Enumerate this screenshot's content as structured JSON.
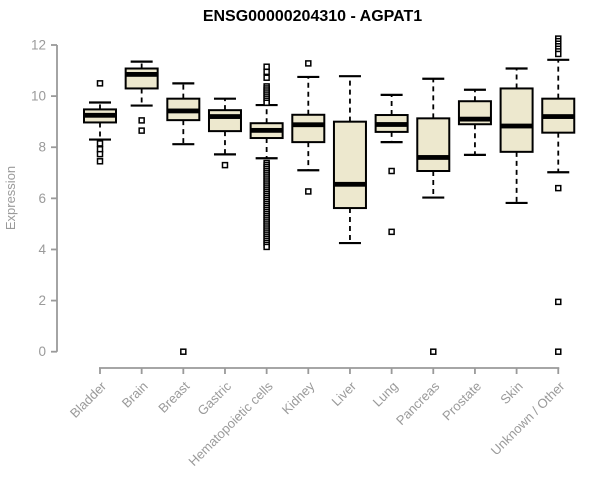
{
  "title": "ENSG00000204310 - AGPAT1",
  "colors": {
    "box_fill": "#ede8ce",
    "box_stroke": "#000000",
    "median": "#000000",
    "axis_line": "#9a9a9a",
    "axis_text": "#9a9a9a",
    "title_text": "#000000",
    "outlier_fill": "#ffffff"
  },
  "chart_data": {
    "type": "boxplot",
    "title": "ENSG00000204310 - AGPAT1",
    "ylabel": "Expression",
    "xlabel": "",
    "ylim": [
      0,
      12
    ],
    "yticks": [
      0,
      2,
      4,
      6,
      8,
      10,
      12
    ],
    "grid": false,
    "whisker_style": "dashed",
    "categories": [
      "Bladder",
      "Brain",
      "Breast",
      "Gastric",
      "Hematopoietic cells",
      "Kidney",
      "Liver",
      "Lung",
      "Pancreas",
      "Prostate",
      "Skin",
      "Unknown / Other"
    ],
    "series": [
      {
        "name": "Bladder",
        "whisker_low": 8.3,
        "q1": 8.97,
        "median": 9.25,
        "q3": 9.48,
        "whisker_high": 9.75,
        "outliers": [
          10.5,
          8.15,
          7.92,
          7.73,
          7.45
        ]
      },
      {
        "name": "Brain",
        "whisker_low": 9.63,
        "q1": 10.3,
        "median": 10.85,
        "q3": 11.08,
        "whisker_high": 11.35,
        "outliers": [
          9.05,
          8.65
        ]
      },
      {
        "name": "Breast",
        "whisker_low": 8.12,
        "q1": 9.06,
        "median": 9.42,
        "q3": 9.9,
        "whisker_high": 10.5,
        "outliers": [
          0.0
        ]
      },
      {
        "name": "Gastric",
        "whisker_low": 7.72,
        "q1": 8.63,
        "median": 9.2,
        "q3": 9.45,
        "whisker_high": 9.9,
        "outliers": [
          7.3
        ]
      },
      {
        "name": "Hematopoietic cells",
        "whisker_low": 7.57,
        "q1": 8.36,
        "median": 8.66,
        "q3": 8.94,
        "whisker_high": 9.65,
        "outliers": [
          11.15,
          10.95,
          10.72,
          10.38,
          10.3,
          10.22,
          10.14,
          10.06,
          9.98,
          9.9,
          9.82,
          9.74,
          7.38,
          7.3,
          7.22,
          7.14,
          7.06,
          6.98,
          6.9,
          6.82,
          6.74,
          6.66,
          6.58,
          6.5,
          6.42,
          6.34,
          6.26,
          6.18,
          6.1,
          6.02,
          5.94,
          5.86,
          5.78,
          5.7,
          5.62,
          5.54,
          5.46,
          5.38,
          5.3,
          5.22,
          5.14,
          5.06,
          4.98,
          4.9,
          4.82,
          4.74,
          4.66,
          4.58,
          4.5,
          4.42,
          4.34,
          4.26,
          4.18,
          4.1
        ]
      },
      {
        "name": "Kidney",
        "whisker_low": 7.1,
        "q1": 8.2,
        "median": 8.88,
        "q3": 9.27,
        "whisker_high": 10.75,
        "outliers": [
          11.28,
          6.27
        ]
      },
      {
        "name": "Liver",
        "whisker_low": 4.25,
        "q1": 5.62,
        "median": 6.55,
        "q3": 9.0,
        "whisker_high": 10.78,
        "outliers": []
      },
      {
        "name": "Lung",
        "whisker_low": 8.2,
        "q1": 8.6,
        "median": 8.89,
        "q3": 9.26,
        "whisker_high": 10.05,
        "outliers": [
          7.07,
          4.69
        ]
      },
      {
        "name": "Pancreas",
        "whisker_low": 6.03,
        "q1": 7.07,
        "median": 7.6,
        "q3": 9.13,
        "whisker_high": 10.68,
        "outliers": [
          0.0
        ]
      },
      {
        "name": "Prostate",
        "whisker_low": 7.7,
        "q1": 8.9,
        "median": 9.1,
        "q3": 9.8,
        "whisker_high": 10.25,
        "outliers": []
      },
      {
        "name": "Skin",
        "whisker_low": 5.82,
        "q1": 7.82,
        "median": 8.83,
        "q3": 10.3,
        "whisker_high": 11.08,
        "outliers": []
      },
      {
        "name": "Unknown / Other",
        "whisker_low": 7.02,
        "q1": 8.57,
        "median": 9.2,
        "q3": 9.9,
        "whisker_high": 11.42,
        "outliers": [
          12.25,
          12.15,
          12.05,
          11.95,
          11.85,
          11.75,
          11.65,
          6.4,
          1.95,
          0.0
        ]
      }
    ]
  }
}
